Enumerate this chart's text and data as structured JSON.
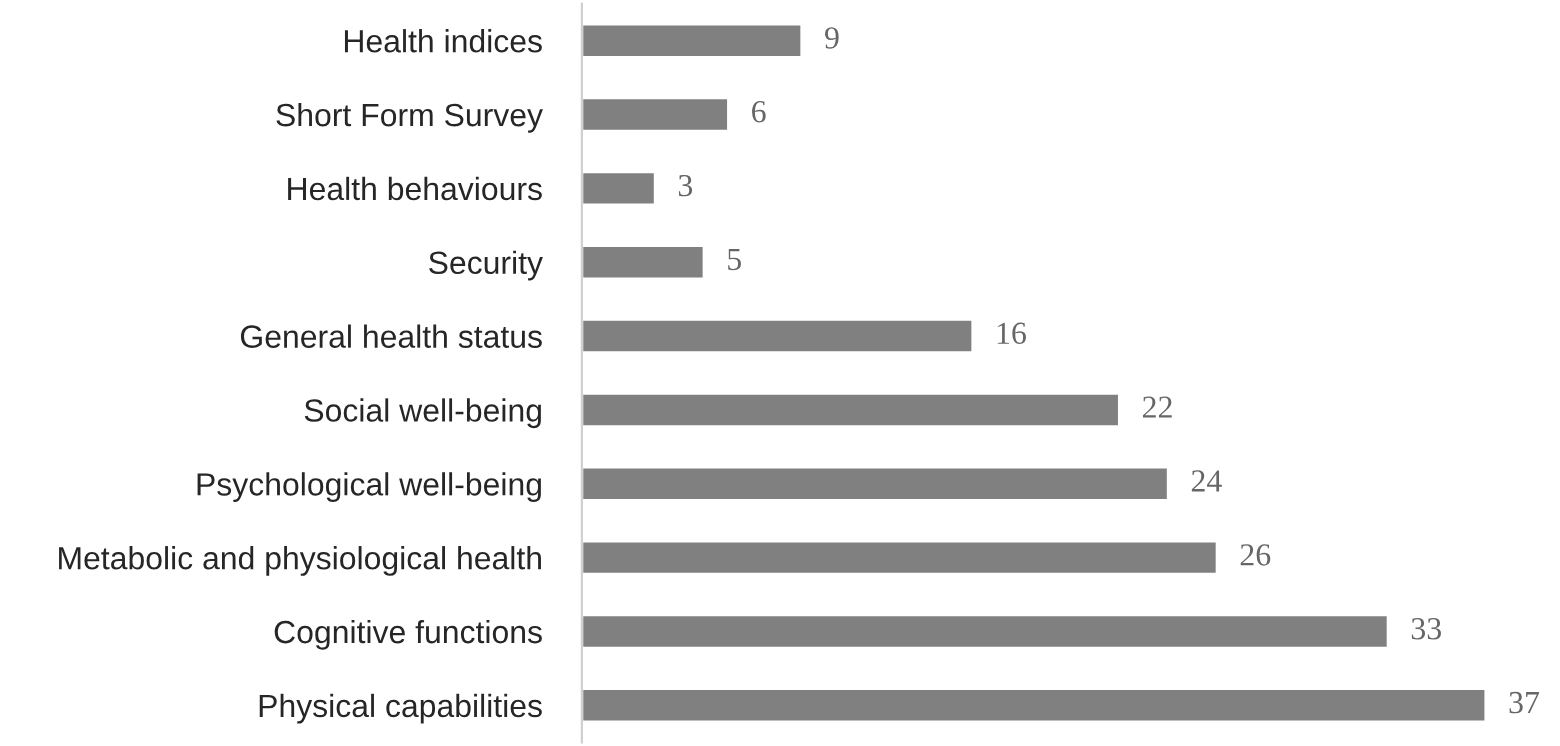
{
  "chart_data": {
    "type": "bar",
    "orientation": "horizontal",
    "categories": [
      "Health indices",
      "Short Form Survey",
      "Health behaviours",
      "Security",
      "General health status",
      "Social well-being",
      "Psychological well-being",
      "Metabolic and physiological health",
      "Cognitive functions",
      "Physical capabilities"
    ],
    "values": [
      9,
      6,
      3,
      5,
      16,
      22,
      24,
      26,
      33,
      37
    ],
    "color": "#808080",
    "data_labels": true,
    "tick_labels": "y",
    "grid": false,
    "legend": false
  }
}
